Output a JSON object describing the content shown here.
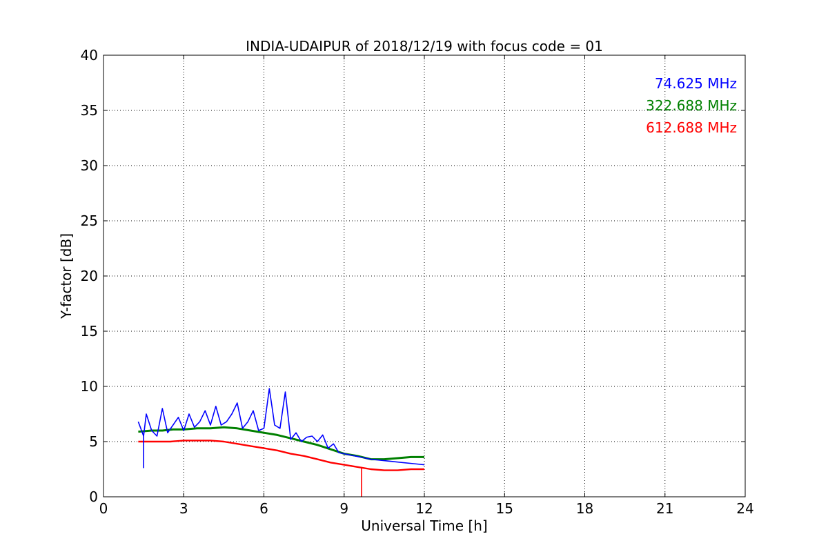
{
  "chart_data": {
    "type": "line",
    "title": "INDIA-UDAIPUR of 2018/12/19 with focus code = 01",
    "xlabel": "Universal Time [h]",
    "ylabel": "Y-factor [dB]",
    "xlim": [
      0,
      24
    ],
    "ylim": [
      0,
      40
    ],
    "xticks": [
      0,
      3,
      6,
      9,
      12,
      15,
      18,
      21,
      24
    ],
    "yticks": [
      0,
      5,
      10,
      15,
      20,
      25,
      30,
      35,
      40
    ],
    "grid": true,
    "legend_position": "top-right",
    "series": [
      {
        "name": "74.625 MHz",
        "color": "#0000ff",
        "x": [
          1.3,
          1.5,
          1.6,
          1.8,
          2.0,
          2.2,
          2.4,
          2.6,
          2.8,
          3.0,
          3.2,
          3.4,
          3.6,
          3.8,
          4.0,
          4.2,
          4.4,
          4.6,
          4.8,
          5.0,
          5.2,
          5.4,
          5.6,
          5.8,
          6.0,
          6.2,
          6.3,
          6.4,
          6.6,
          6.8,
          7.0,
          7.2,
          7.4,
          7.6,
          7.8,
          8.0,
          8.2,
          8.4,
          8.6,
          8.8,
          9.0,
          9.2,
          9.4,
          9.6,
          9.8,
          10.0,
          10.4,
          10.8,
          11.2,
          11.6,
          12.0
        ],
        "y": [
          6.8,
          5.5,
          7.5,
          6.0,
          5.5,
          8.0,
          5.8,
          6.5,
          7.2,
          6.0,
          7.5,
          6.3,
          6.8,
          7.8,
          6.5,
          8.2,
          6.5,
          6.8,
          7.5,
          8.5,
          6.2,
          6.8,
          7.8,
          6.0,
          6.2,
          9.8,
          8.2,
          6.5,
          6.2,
          9.5,
          5.2,
          5.8,
          5.0,
          5.4,
          5.5,
          5.0,
          5.6,
          4.4,
          4.8,
          4.0,
          3.9,
          3.8,
          3.7,
          3.6,
          3.5,
          3.4,
          3.3,
          3.2,
          3.1,
          3.0,
          2.9
        ]
      },
      {
        "name": "322.688 MHz",
        "color": "#008000",
        "x": [
          1.3,
          1.8,
          2.2,
          2.6,
          3.0,
          3.5,
          4.0,
          4.5,
          5.0,
          5.5,
          6.0,
          6.5,
          7.0,
          7.5,
          8.0,
          8.5,
          9.0,
          9.5,
          10.0,
          10.5,
          11.0,
          11.5,
          12.0
        ],
        "y": [
          5.9,
          6.0,
          6.0,
          6.1,
          6.1,
          6.2,
          6.2,
          6.3,
          6.2,
          6.0,
          5.8,
          5.6,
          5.3,
          5.0,
          4.7,
          4.3,
          3.9,
          3.7,
          3.4,
          3.4,
          3.5,
          3.6,
          3.6
        ]
      },
      {
        "name": "612.688 MHz",
        "color": "#ff0000",
        "x": [
          1.3,
          2.0,
          2.5,
          3.0,
          3.5,
          4.0,
          4.5,
          5.0,
          5.5,
          6.0,
          6.5,
          7.0,
          7.5,
          8.0,
          8.5,
          9.0,
          9.5,
          10.0,
          10.5,
          11.0,
          11.5,
          12.0
        ],
        "y": [
          5.0,
          5.0,
          5.0,
          5.1,
          5.1,
          5.1,
          5.0,
          4.8,
          4.6,
          4.4,
          4.2,
          3.9,
          3.7,
          3.4,
          3.1,
          2.9,
          2.7,
          2.5,
          2.4,
          2.4,
          2.5,
          2.5
        ]
      }
    ],
    "spikes": [
      {
        "series": "74.625 MHz",
        "x": 1.5,
        "y_from": 5.5,
        "y_to": 2.6
      },
      {
        "series": "612.688 MHz",
        "x": 9.65,
        "y_from": 2.7,
        "y_to": 0.0
      }
    ]
  }
}
